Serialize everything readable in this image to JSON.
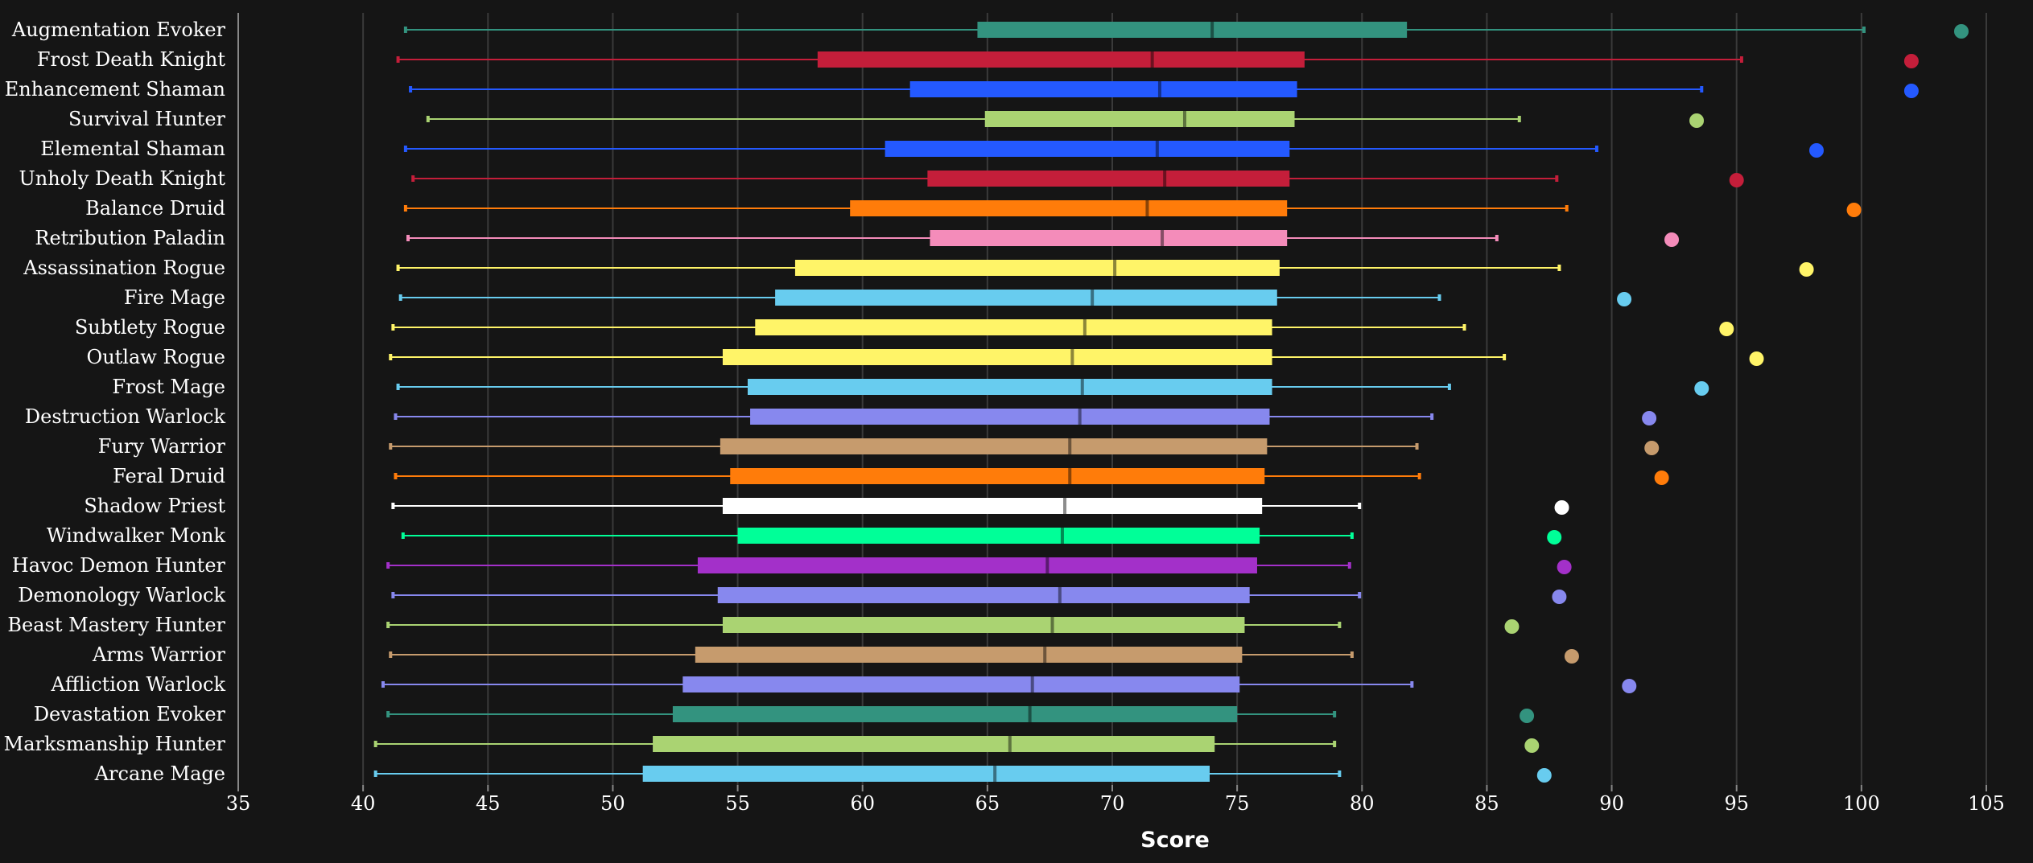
{
  "chart_data": {
    "type": "box",
    "xlabel": "Score",
    "xlim": [
      35,
      105
    ],
    "xticks": [
      35,
      40,
      45,
      50,
      55,
      60,
      65,
      70,
      75,
      80,
      85,
      90,
      95,
      100,
      105
    ],
    "grid": true,
    "series": [
      {
        "name": "Augmentation Evoker",
        "color": "#33937f",
        "min": 41.7,
        "q1": 64.6,
        "median": 74.0,
        "q3": 81.8,
        "max": 100.1,
        "top": 104.0
      },
      {
        "name": "Frost Death Knight",
        "color": "#c41e3a",
        "min": 41.4,
        "q1": 58.2,
        "median": 71.6,
        "q3": 77.7,
        "max": 95.2,
        "top": 102.0
      },
      {
        "name": "Enhancement Shaman",
        "color": "#2459ff",
        "min": 41.9,
        "q1": 61.9,
        "median": 71.9,
        "q3": 77.4,
        "max": 93.6,
        "top": 102.0
      },
      {
        "name": "Survival Hunter",
        "color": "#aad372",
        "min": 42.6,
        "q1": 64.9,
        "median": 72.9,
        "q3": 77.3,
        "max": 86.3,
        "top": 93.4
      },
      {
        "name": "Elemental Shaman",
        "color": "#2459ff",
        "min": 41.7,
        "q1": 60.9,
        "median": 71.8,
        "q3": 77.1,
        "max": 89.4,
        "top": 98.2
      },
      {
        "name": "Unholy Death Knight",
        "color": "#c41e3a",
        "min": 42.0,
        "q1": 62.6,
        "median": 72.1,
        "q3": 77.1,
        "max": 87.8,
        "top": 95.0
      },
      {
        "name": "Balance Druid",
        "color": "#ff7c0a",
        "min": 41.7,
        "q1": 59.5,
        "median": 71.4,
        "q3": 77.0,
        "max": 88.2,
        "top": 99.7
      },
      {
        "name": "Retribution Paladin",
        "color": "#f48cba",
        "min": 41.8,
        "q1": 62.7,
        "median": 72.0,
        "q3": 77.0,
        "max": 85.4,
        "top": 92.4
      },
      {
        "name": "Assassination Rogue",
        "color": "#fff468",
        "min": 41.4,
        "q1": 57.3,
        "median": 70.1,
        "q3": 76.7,
        "max": 87.9,
        "top": 97.8
      },
      {
        "name": "Fire Mage",
        "color": "#68ccef",
        "min": 41.5,
        "q1": 56.5,
        "median": 69.2,
        "q3": 76.6,
        "max": 83.1,
        "top": 90.5
      },
      {
        "name": "Subtlety Rogue",
        "color": "#fff468",
        "min": 41.2,
        "q1": 55.7,
        "median": 68.9,
        "q3": 76.4,
        "max": 84.1,
        "top": 94.6
      },
      {
        "name": "Outlaw Rogue",
        "color": "#fff468",
        "min": 41.1,
        "q1": 54.4,
        "median": 68.4,
        "q3": 76.4,
        "max": 85.7,
        "top": 95.8
      },
      {
        "name": "Frost Mage",
        "color": "#68ccef",
        "min": 41.4,
        "q1": 55.4,
        "median": 68.8,
        "q3": 76.4,
        "max": 83.5,
        "top": 93.6
      },
      {
        "name": "Destruction Warlock",
        "color": "#8788ee",
        "min": 41.3,
        "q1": 55.5,
        "median": 68.7,
        "q3": 76.3,
        "max": 82.8,
        "top": 91.5
      },
      {
        "name": "Fury Warrior",
        "color": "#c69b6d",
        "min": 41.1,
        "q1": 54.3,
        "median": 68.3,
        "q3": 76.2,
        "max": 82.2,
        "top": 91.6
      },
      {
        "name": "Feral Druid",
        "color": "#ff7c0a",
        "min": 41.3,
        "q1": 54.7,
        "median": 68.3,
        "q3": 76.1,
        "max": 82.3,
        "top": 92.0
      },
      {
        "name": "Shadow Priest",
        "color": "#ffffff",
        "min": 41.2,
        "q1": 54.4,
        "median": 68.1,
        "q3": 76.0,
        "max": 79.9,
        "top": 88.0
      },
      {
        "name": "Windwalker Monk",
        "color": "#00ff98",
        "min": 41.6,
        "q1": 55.0,
        "median": 68.0,
        "q3": 75.9,
        "max": 79.6,
        "top": 87.7
      },
      {
        "name": "Havoc Demon Hunter",
        "color": "#a330c9",
        "min": 41.0,
        "q1": 53.4,
        "median": 67.4,
        "q3": 75.8,
        "max": 79.5,
        "top": 88.1
      },
      {
        "name": "Demonology Warlock",
        "color": "#8788ee",
        "min": 41.2,
        "q1": 54.2,
        "median": 67.9,
        "q3": 75.5,
        "max": 79.9,
        "top": 87.9
      },
      {
        "name": "Beast Mastery Hunter",
        "color": "#aad372",
        "min": 41.0,
        "q1": 54.4,
        "median": 67.6,
        "q3": 75.3,
        "max": 79.1,
        "top": 86.0
      },
      {
        "name": "Arms Warrior",
        "color": "#c69b6d",
        "min": 41.1,
        "q1": 53.3,
        "median": 67.3,
        "q3": 75.2,
        "max": 79.6,
        "top": 88.4
      },
      {
        "name": "Affliction Warlock",
        "color": "#8788ee",
        "min": 40.8,
        "q1": 52.8,
        "median": 66.8,
        "q3": 75.1,
        "max": 82.0,
        "top": 90.7
      },
      {
        "name": "Devastation Evoker",
        "color": "#33937f",
        "min": 41.0,
        "q1": 52.4,
        "median": 66.7,
        "q3": 75.0,
        "max": 78.9,
        "top": 86.6
      },
      {
        "name": "Marksmanship Hunter",
        "color": "#aad372",
        "min": 40.5,
        "q1": 51.6,
        "median": 65.9,
        "q3": 74.1,
        "max": 78.9,
        "top": 86.8
      },
      {
        "name": "Arcane Mage",
        "color": "#68ccef",
        "min": 40.5,
        "q1": 51.2,
        "median": 65.3,
        "q3": 73.9,
        "max": 79.1,
        "top": 87.3
      }
    ]
  }
}
